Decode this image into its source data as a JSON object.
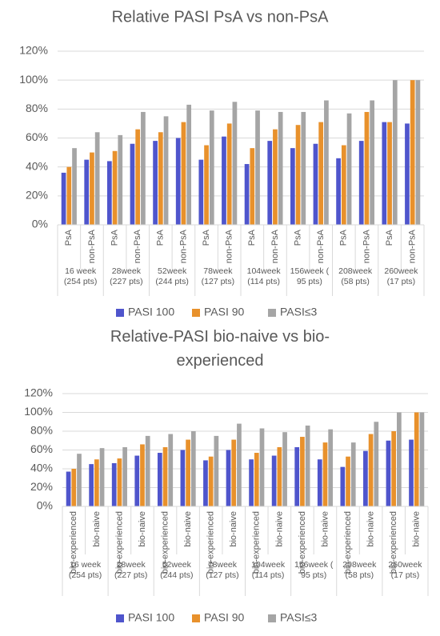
{
  "chart_data": [
    {
      "type": "bar",
      "title": "Relative PASI PsA vs non-PsA",
      "categories": [
        "PsA",
        "non-PsA",
        "PsA",
        "non-PsA",
        "PsA",
        "non-PsA",
        "PsA",
        "non-PsA",
        "PsA",
        "non-PsA",
        "PsA",
        "non-PsA",
        "PsA",
        "non-PsA",
        "PsA",
        "non-PsA"
      ],
      "groups": [
        "16 week (254 pts)",
        "28week (227 pts)",
        "52week (244 pts)",
        "78week (127 pts)",
        "104week (114 pts)",
        "156week ( 95 pts)",
        "208week (58 pts)",
        "260week (17 pts)"
      ],
      "series": [
        {
          "name": "PASI 100",
          "color": "#4f55cc",
          "values": [
            36,
            45,
            44,
            56,
            58,
            60,
            45,
            61,
            42,
            58,
            53,
            56,
            46,
            58,
            71,
            70
          ]
        },
        {
          "name": "PASI 90",
          "color": "#e8912c",
          "values": [
            40,
            50,
            51,
            66,
            64,
            71,
            55,
            70,
            53,
            66,
            69,
            71,
            55,
            78,
            71,
            100
          ]
        },
        {
          "name": "PASI≤3",
          "color": "#a5a5a5",
          "values": [
            53,
            64,
            62,
            78,
            75,
            83,
            79,
            85,
            79,
            78,
            78,
            86,
            77,
            86,
            100,
            100
          ]
        }
      ],
      "ylim": [
        0,
        120
      ],
      "yticks": [
        {
          "value": 0,
          "label": "0%"
        },
        {
          "value": 20,
          "label": "20%"
        },
        {
          "value": 40,
          "label": "40%"
        },
        {
          "value": 60,
          "label": "60%"
        },
        {
          "value": 80,
          "label": "80%"
        },
        {
          "value": 100,
          "label": "100%"
        },
        {
          "value": 120,
          "label": "120%"
        }
      ],
      "grid": true,
      "legend": "bottom"
    },
    {
      "type": "bar",
      "title": "Relative-PASI bio-naive vs bio-experienced",
      "categories": [
        "bio-experienced",
        "bio-naive",
        "bio-experienced",
        "bio-naive",
        "bio-experienced",
        "bio-naive",
        "bio-experienced",
        "bio-naive",
        "bio-experienced",
        "bio-naive",
        "bio-experienced",
        "bio-naive",
        "bio-experienced",
        "bio-naive",
        "bio-experienced",
        "bio-naive"
      ],
      "groups": [
        "16 week (254 pts)",
        "28week (227 pts)",
        "52week (244 pts)",
        "78week (127 pts)",
        "104week (114 pts)",
        "156week ( 95 pts)",
        "208week (58 pts)",
        "260week (17 pts)"
      ],
      "series": [
        {
          "name": "PASI 100",
          "color": "#4f55cc",
          "values": [
            37,
            45,
            46,
            54,
            57,
            60,
            49,
            60,
            50,
            54,
            63,
            50,
            42,
            59,
            70,
            71
          ]
        },
        {
          "name": "PASI 90",
          "color": "#e8912c",
          "values": [
            40,
            50,
            51,
            66,
            63,
            71,
            53,
            71,
            57,
            63,
            74,
            68,
            53,
            77,
            80,
            100
          ]
        },
        {
          "name": "PASI≤3",
          "color": "#a5a5a5",
          "values": [
            56,
            62,
            63,
            75,
            77,
            80,
            75,
            88,
            83,
            79,
            86,
            82,
            68,
            90,
            100,
            100
          ]
        }
      ],
      "ylim": [
        0,
        120
      ],
      "yticks": [
        {
          "value": 0,
          "label": "0%"
        },
        {
          "value": 20,
          "label": "20%"
        },
        {
          "value": 40,
          "label": "40%"
        },
        {
          "value": 60,
          "label": "60%"
        },
        {
          "value": 80,
          "label": "80%"
        },
        {
          "value": 100,
          "label": "100%"
        },
        {
          "value": 120,
          "label": "120%"
        }
      ],
      "grid": true,
      "legend": "bottom"
    }
  ]
}
